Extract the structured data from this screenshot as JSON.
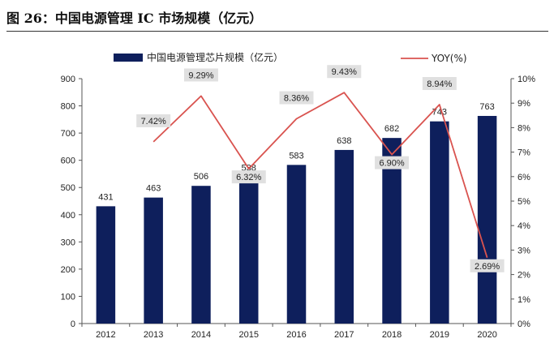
{
  "figure": {
    "title": "图 26：中国电源管理 IC 市场规模（亿元）"
  },
  "chart_data": {
    "type": "bar",
    "categories": [
      "2012",
      "2013",
      "2014",
      "2015",
      "2016",
      "2017",
      "2018",
      "2019",
      "2020"
    ],
    "series": [
      {
        "name": "中国电源管理芯片规模（亿元）",
        "type": "bar",
        "axis": "left",
        "color": "#0e1f5c",
        "values": [
          431,
          463,
          506,
          538,
          583,
          638,
          682,
          743,
          763
        ],
        "labels": [
          "431",
          "463",
          "506",
          "538",
          "583",
          "638",
          "682",
          "743",
          "763"
        ]
      },
      {
        "name": "YOY(%)",
        "type": "line",
        "axis": "right",
        "color": "#d9534f",
        "values": [
          null,
          7.42,
          9.29,
          6.32,
          8.36,
          9.43,
          6.9,
          8.94,
          2.69
        ],
        "labels": [
          "",
          "7.42%",
          "9.29%",
          "6.32%",
          "8.36%",
          "9.43%",
          "6.90%",
          "8.94%",
          "2.69%"
        ]
      }
    ],
    "ylim_left": [
      0,
      900
    ],
    "yticks_left": [
      "0",
      "100",
      "200",
      "300",
      "400",
      "500",
      "600",
      "700",
      "800",
      "900"
    ],
    "ylim_right": [
      0,
      10
    ],
    "yticks_right": [
      "0%",
      "1%",
      "2%",
      "3%",
      "4%",
      "5%",
      "6%",
      "7%",
      "8%",
      "9%",
      "10%"
    ],
    "grid": false,
    "legend": "top"
  }
}
